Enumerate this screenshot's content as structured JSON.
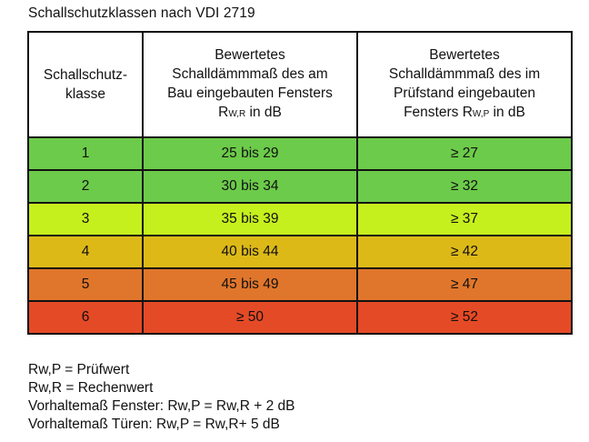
{
  "title": "Schallschutzklassen nach VDI 2719",
  "table": {
    "headers": {
      "col1_line1": "Schallschutz-",
      "col1_line2": "klasse",
      "col2_line1": "Bewertetes",
      "col2_line2": "Schalldämmmaß des am",
      "col2_line3": "Bau eingebauten Fensters",
      "col2_symbol": "R",
      "col2_sub": "W,R",
      "col2_unit": " in dB",
      "col3_line1": "Bewertetes",
      "col3_line2": "Schalldämmmaß des im",
      "col3_line3": "Prüfstand eingebauten",
      "col3_prefix": "Fensters ",
      "col3_symbol": "R",
      "col3_sub": "W,P",
      "col3_unit": " in dB"
    },
    "rows": [
      {
        "klasse": "1",
        "bau": "25 bis 29",
        "pruef": "≥ 27",
        "color": "#6ccb4a"
      },
      {
        "klasse": "2",
        "bau": "30 bis 34",
        "pruef": "≥ 32",
        "color": "#6ccb4a"
      },
      {
        "klasse": "3",
        "bau": "35 bis 39",
        "pruef": "≥ 37",
        "color": "#c6ef1e"
      },
      {
        "klasse": "4",
        "bau": "40 bis 44",
        "pruef": "≥ 42",
        "color": "#ddb918"
      },
      {
        "klasse": "5",
        "bau": "45 bis 49",
        "pruef": "≥ 47",
        "color": "#e0762b"
      },
      {
        "klasse": "6",
        "bau": "≥ 50",
        "pruef": "≥ 52",
        "color": "#e54a26"
      }
    ]
  },
  "notes": [
    "Rw,P = Prüfwert",
    "Rw,R = Rechenwert",
    "Vorhaltemaß Fenster: Rw,P = Rw,R + 2 dB",
    "Vorhaltemaß Türen: Rw,P = Rw,R+ 5 dB"
  ]
}
